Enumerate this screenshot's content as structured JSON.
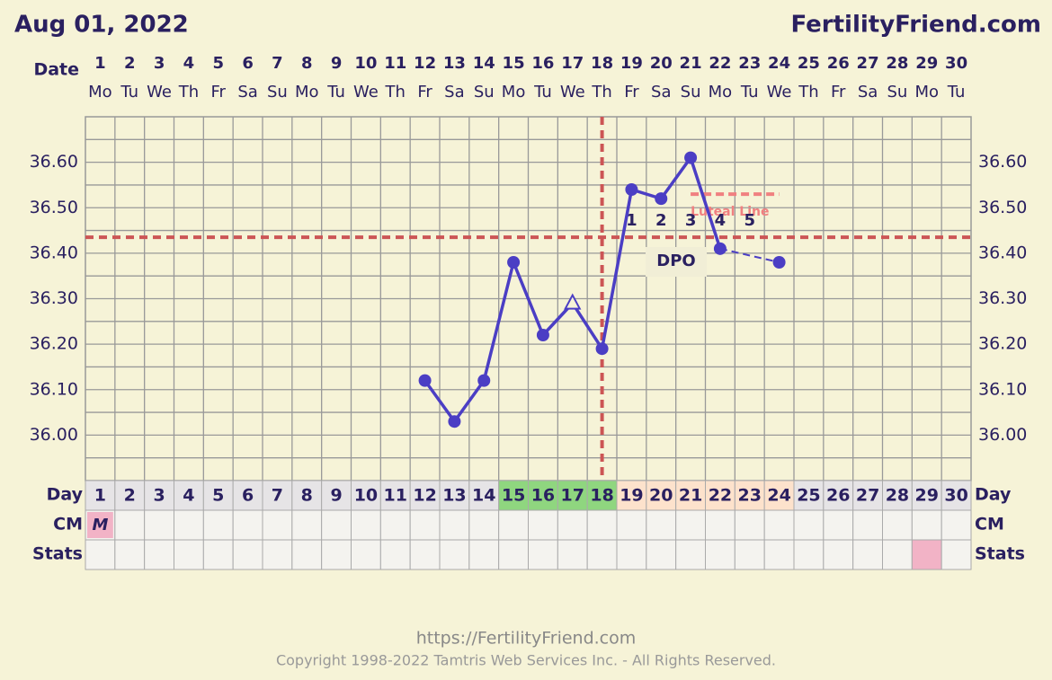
{
  "chart_data": {
    "type": "line",
    "title": "Aug 01, 2022",
    "site": "FertilityFriend.com",
    "date_label": "Date",
    "dates": [
      1,
      2,
      3,
      4,
      5,
      6,
      7,
      8,
      9,
      10,
      11,
      12,
      13,
      14,
      15,
      16,
      17,
      18,
      19,
      20,
      21,
      22,
      23,
      24,
      25,
      26,
      27,
      28,
      29,
      30
    ],
    "weekdays": [
      "Mo",
      "Tu",
      "We",
      "Th",
      "Fr",
      "Sa",
      "Su",
      "Mo",
      "Tu",
      "We",
      "Th",
      "Fr",
      "Sa",
      "Su",
      "Mo",
      "Tu",
      "We",
      "Th",
      "Fr",
      "Sa",
      "Su",
      "Mo",
      "Tu",
      "We",
      "Th",
      "Fr",
      "Sa",
      "Su",
      "Mo",
      "Tu"
    ],
    "values": [
      null,
      null,
      null,
      null,
      null,
      null,
      null,
      null,
      null,
      null,
      null,
      36.12,
      36.03,
      36.12,
      36.38,
      36.22,
      36.29,
      36.19,
      36.54,
      36.52,
      36.61,
      36.41,
      null,
      36.38,
      null,
      null,
      null,
      null,
      null,
      null
    ],
    "open_marker_at": [
      16
    ],
    "color": "#4b3ec4",
    "ylim": [
      35.9,
      36.7
    ],
    "yticks": [
      {
        "value": 36.0,
        "label": "36.00"
      },
      {
        "value": 36.1,
        "label": "36.10"
      },
      {
        "value": 36.2,
        "label": "36.20"
      },
      {
        "value": 36.3,
        "label": "36.30"
      },
      {
        "value": 36.4,
        "label": "36.40"
      },
      {
        "value": 36.5,
        "label": "36.50"
      },
      {
        "value": 36.6,
        "label": "36.60"
      }
    ],
    "grid": true,
    "coverline": 36.435,
    "ovulation_day": 18,
    "luteal_line": {
      "label": "Luteal Line",
      "value": 36.53,
      "start_day": 21,
      "end_day": 24
    },
    "dpo_label": "DPO",
    "dpo_numbers": [
      null,
      null,
      null,
      null,
      null,
      null,
      null,
      null,
      null,
      null,
      null,
      null,
      null,
      null,
      null,
      null,
      null,
      null,
      1,
      2,
      3,
      4,
      5,
      null,
      null,
      null,
      null,
      null,
      null,
      null
    ],
    "day_label": "Day",
    "day_cell_colors": [
      "#e6e4e6",
      "#e6e4e6",
      "#e6e4e6",
      "#e6e4e6",
      "#e6e4e6",
      "#e6e4e6",
      "#e6e4e6",
      "#e6e4e6",
      "#e6e4e6",
      "#e6e4e6",
      "#e6e4e6",
      "#e6e4e6",
      "#e6e4e6",
      "#e6e4e6",
      "#8fd67f",
      "#8fd67f",
      "#8fd67f",
      "#8fd67f",
      "#fde2cc",
      "#fde2cc",
      "#fde2cc",
      "#fde2cc",
      "#fde2cc",
      "#fde2cc",
      "#e6e4e6",
      "#e6e4e6",
      "#e6e4e6",
      "#e6e4e6",
      "#e6e4e6",
      "#e6e4e6"
    ],
    "cm_label": "CM",
    "cm": [
      "M",
      null,
      null,
      null,
      null,
      null,
      null,
      null,
      null,
      null,
      null,
      null,
      null,
      null,
      null,
      null,
      null,
      null,
      null,
      null,
      null,
      null,
      null,
      null,
      null,
      null,
      null,
      null,
      null,
      null
    ],
    "stats_label": "Stats",
    "stats_marked": [
      29
    ],
    "mark_color": "#f2b3c6",
    "footer_url": "https://FertilityFriend.com",
    "copyright": "Copyright 1998-2022 Tamtris Web Services Inc. - All Rights Reserved."
  }
}
